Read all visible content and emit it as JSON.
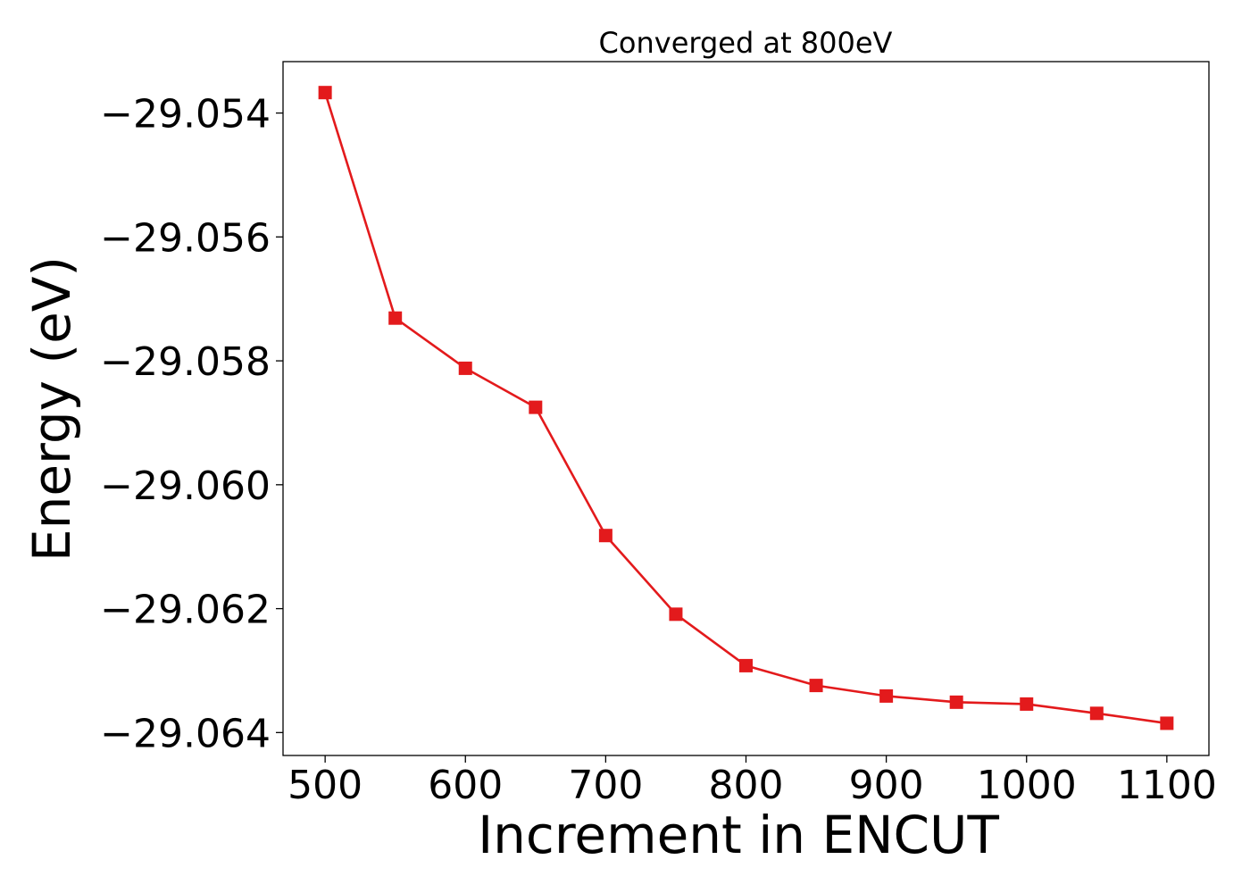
{
  "chart_data": {
    "type": "line",
    "title": "Converged at 800eV",
    "xlabel": "Increment in ENCUT",
    "ylabel": "Energy (eV)",
    "xlim": [
      470,
      1130
    ],
    "ylim": [
      -29.06437,
      -29.05317
    ],
    "x_ticks": [
      500,
      600,
      700,
      800,
      900,
      1000,
      1100
    ],
    "x_tick_labels": [
      "500",
      "600",
      "700",
      "800",
      "900",
      "1000",
      "1100"
    ],
    "y_ticks": [
      -29.054,
      -29.056,
      -29.058,
      -29.06,
      -29.062,
      -29.064
    ],
    "y_tick_labels": [
      "−29.054",
      "−29.056",
      "−29.058",
      "−29.060",
      "−29.062",
      "−29.064"
    ],
    "grid": false,
    "series": [
      {
        "color": "#e31a1c",
        "marker": "square",
        "x": [
          500,
          550,
          600,
          650,
          700,
          750,
          800,
          850,
          900,
          950,
          1000,
          1050,
          1100
        ],
        "y": [
          -29.05367,
          -29.05731,
          -29.05812,
          -29.05875,
          -29.06082,
          -29.06209,
          -29.06292,
          -29.06324,
          -29.06341,
          -29.06351,
          -29.06354,
          -29.06369,
          -29.06385
        ]
      }
    ]
  }
}
